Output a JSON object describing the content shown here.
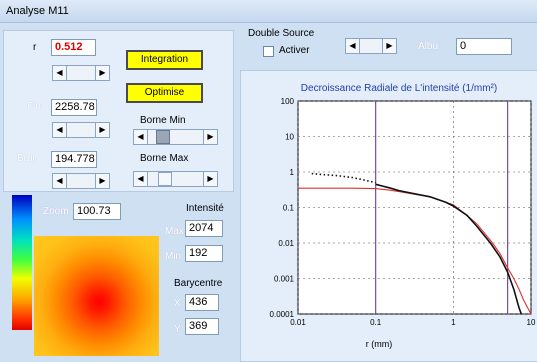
{
  "window": {
    "title": "Analyse M11"
  },
  "params": {
    "r_label": "r",
    "r_value": "0.512",
    "flu_label": "Flu",
    "flu_value": "2258.78",
    "bruit_label": "Bruit",
    "bruit_value": "194.778",
    "integration_label": "Integration",
    "optimise_label": "Optimise",
    "borne_min_label": "Borne Min",
    "borne_max_label": "Borne Max"
  },
  "double_source": {
    "title": "Double Source",
    "activer_label": "Activer",
    "activer_checked": false,
    "albu_label": "Albu",
    "albu_value": "0"
  },
  "image": {
    "zoom_label": "Zoom",
    "zoom_value": "100.73",
    "intensite_label": "Intensité",
    "max_label": "Max",
    "max_value": "2074",
    "min_label": "Min",
    "min_value": "192",
    "barycentre_label": "Barycentre",
    "x_label": "X",
    "x_value": "436",
    "y_label": "Y",
    "y_value": "369"
  },
  "chart_data": {
    "type": "line",
    "title": "Decroissance Radiale de  L'intensité (1/mm²)",
    "xlabel": "r (mm)",
    "ylabel": "",
    "xscale": "log",
    "yscale": "log",
    "xlim": [
      0.01,
      10
    ],
    "ylim": [
      0.0001,
      100
    ],
    "xticks": [
      "0.01",
      "0.1",
      "1",
      "10"
    ],
    "yticks": [
      "100",
      "10",
      "1",
      "0.1",
      "0.01",
      "0.001",
      "0.0001"
    ],
    "grid": true,
    "series": [
      {
        "color": "#e03030",
        "style": "solid",
        "x": [
          0.01,
          0.05,
          0.1,
          0.15,
          0.2,
          0.3,
          0.5,
          0.8,
          1.0,
          1.5,
          2.0,
          3.0,
          4.0,
          5.0,
          6.0,
          7.0,
          8.0,
          10.0
        ],
        "y": [
          0.35,
          0.35,
          0.34,
          0.31,
          0.28,
          0.24,
          0.2,
          0.14,
          0.12,
          0.06,
          0.035,
          0.012,
          0.005,
          0.002,
          0.001,
          0.0005,
          0.00025,
          0.0001
        ]
      },
      {
        "color": "#111111",
        "style": "dotted",
        "x": [
          0.015,
          0.02,
          0.03,
          0.05,
          0.07,
          0.1
        ],
        "y": [
          0.9,
          0.85,
          0.8,
          0.7,
          0.6,
          0.5
        ]
      },
      {
        "color": "#111111",
        "style": "solid",
        "x": [
          0.1,
          0.15,
          0.2,
          0.3,
          0.5,
          0.8,
          1.0,
          1.5,
          2.0,
          3.0,
          4.0,
          5.0,
          6.0,
          7.0,
          7.5
        ],
        "y": [
          0.45,
          0.36,
          0.3,
          0.25,
          0.2,
          0.14,
          0.11,
          0.06,
          0.03,
          0.01,
          0.004,
          0.0015,
          0.0005,
          0.00015,
          0.0001
        ]
      }
    ],
    "vlines": [
      {
        "x": 0.1,
        "color": "#7a4ca0"
      },
      {
        "x": 5.0,
        "color": "#7a4ca0"
      }
    ]
  }
}
